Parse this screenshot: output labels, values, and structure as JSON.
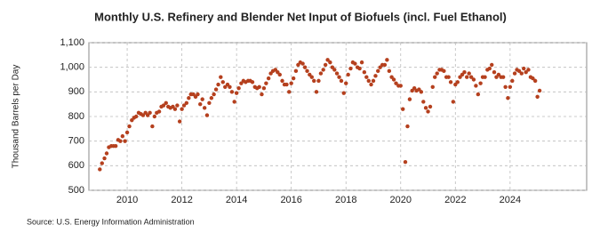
{
  "chart_data": {
    "type": "scatter",
    "title": "Monthly U.S. Refinery and Blender Net Input of Biofuels (incl. Fuel Ethanol)",
    "y_label": "Thousand Barrels per Day",
    "source": "Source: U.S. Energy Information Administration",
    "x": [
      2009.0,
      2009.08,
      2009.17,
      2009.25,
      2009.33,
      2009.42,
      2009.5,
      2009.58,
      2009.67,
      2009.75,
      2009.83,
      2009.92,
      2010.0,
      2010.08,
      2010.17,
      2010.25,
      2010.33,
      2010.42,
      2010.5,
      2010.58,
      2010.67,
      2010.75,
      2010.83,
      2010.92,
      2011.0,
      2011.08,
      2011.17,
      2011.25,
      2011.33,
      2011.42,
      2011.5,
      2011.58,
      2011.67,
      2011.75,
      2011.83,
      2011.92,
      2012.0,
      2012.08,
      2012.17,
      2012.25,
      2012.33,
      2012.42,
      2012.5,
      2012.58,
      2012.67,
      2012.75,
      2012.83,
      2012.92,
      2013.0,
      2013.08,
      2013.17,
      2013.25,
      2013.33,
      2013.42,
      2013.5,
      2013.58,
      2013.67,
      2013.75,
      2013.83,
      2013.92,
      2014.0,
      2014.08,
      2014.17,
      2014.25,
      2014.33,
      2014.42,
      2014.5,
      2014.58,
      2014.67,
      2014.75,
      2014.83,
      2014.92,
      2015.0,
      2015.08,
      2015.17,
      2015.25,
      2015.33,
      2015.42,
      2015.5,
      2015.58,
      2015.67,
      2015.75,
      2015.83,
      2015.92,
      2016.0,
      2016.08,
      2016.17,
      2016.25,
      2016.33,
      2016.42,
      2016.5,
      2016.58,
      2016.67,
      2016.75,
      2016.83,
      2016.92,
      2017.0,
      2017.08,
      2017.17,
      2017.25,
      2017.33,
      2017.42,
      2017.5,
      2017.58,
      2017.67,
      2017.75,
      2017.83,
      2017.92,
      2018.0,
      2018.08,
      2018.17,
      2018.25,
      2018.33,
      2018.42,
      2018.5,
      2018.58,
      2018.67,
      2018.75,
      2018.83,
      2018.92,
      2019.0,
      2019.08,
      2019.17,
      2019.25,
      2019.33,
      2019.42,
      2019.5,
      2019.58,
      2019.67,
      2019.75,
      2019.83,
      2019.92,
      2020.0,
      2020.08,
      2020.17,
      2020.25,
      2020.33,
      2020.42,
      2020.5,
      2020.58,
      2020.67,
      2020.75,
      2020.83,
      2020.92,
      2021.0,
      2021.08,
      2021.17,
      2021.25,
      2021.33,
      2021.42,
      2021.5,
      2021.58,
      2021.67,
      2021.75,
      2021.83,
      2021.92,
      2022.0,
      2022.08,
      2022.17,
      2022.25,
      2022.33,
      2022.42,
      2022.5,
      2022.58,
      2022.67,
      2022.75,
      2022.83,
      2022.92,
      2023.0,
      2023.08,
      2023.17,
      2023.25,
      2023.33,
      2023.42,
      2023.5,
      2023.58,
      2023.67,
      2023.75,
      2023.83,
      2023.92,
      2024.0,
      2024.08,
      2024.17,
      2024.25,
      2024.33,
      2024.42,
      2024.5,
      2024.58,
      2024.67,
      2024.75,
      2024.83,
      2024.92,
      2025.0,
      2025.08
    ],
    "series": [
      {
        "color": "#b5401e",
        "values": [
          585,
          610,
          630,
          650,
          675,
          680,
          680,
          680,
          705,
          700,
          720,
          700,
          735,
          760,
          785,
          795,
          800,
          815,
          810,
          805,
          815,
          805,
          815,
          760,
          800,
          815,
          820,
          840,
          845,
          855,
          840,
          835,
          840,
          830,
          845,
          780,
          830,
          845,
          855,
          875,
          890,
          890,
          880,
          890,
          850,
          870,
          835,
          805,
          855,
          875,
          890,
          910,
          930,
          960,
          940,
          920,
          930,
          920,
          900,
          860,
          895,
          915,
          935,
          945,
          940,
          945,
          945,
          940,
          920,
          915,
          920,
          890,
          915,
          935,
          955,
          975,
          985,
          990,
          980,
          970,
          945,
          930,
          930,
          900,
          935,
          955,
          985,
          1010,
          1020,
          1015,
          1000,
          985,
          970,
          960,
          945,
          900,
          945,
          975,
          990,
          1010,
          1030,
          1020,
          1000,
          990,
          975,
          960,
          945,
          895,
          935,
          970,
          995,
          1020,
          1015,
          1000,
          995,
          1020,
          980,
          960,
          945,
          930,
          945,
          965,
          985,
          1000,
          1010,
          1010,
          1030,
          985,
          960,
          950,
          935,
          925,
          925,
          830,
          615,
          760,
          870,
          905,
          915,
          905,
          910,
          900,
          860,
          835,
          820,
          840,
          920,
          960,
          975,
          990,
          990,
          985,
          960,
          960,
          940,
          860,
          930,
          940,
          960,
          970,
          980,
          960,
          975,
          960,
          950,
          925,
          890,
          935,
          960,
          960,
          990,
          995,
          1010,
          980,
          960,
          970,
          960,
          960,
          920,
          875,
          920,
          945,
          975,
          990,
          985,
          975,
          995,
          980,
          990,
          960,
          955,
          945,
          880,
          905
        ]
      }
    ],
    "xlim": [
      2008.6,
      2026.8
    ],
    "xticks": [
      2010,
      2012,
      2014,
      2016,
      2018,
      2020,
      2022,
      2024
    ],
    "ylim": [
      500,
      1100
    ],
    "yticks": [
      500,
      600,
      700,
      800,
      900,
      {
        "value": 1000,
        "label": "1,000"
      },
      {
        "value": 1100,
        "label": "1,100"
      }
    ],
    "grid": true
  }
}
